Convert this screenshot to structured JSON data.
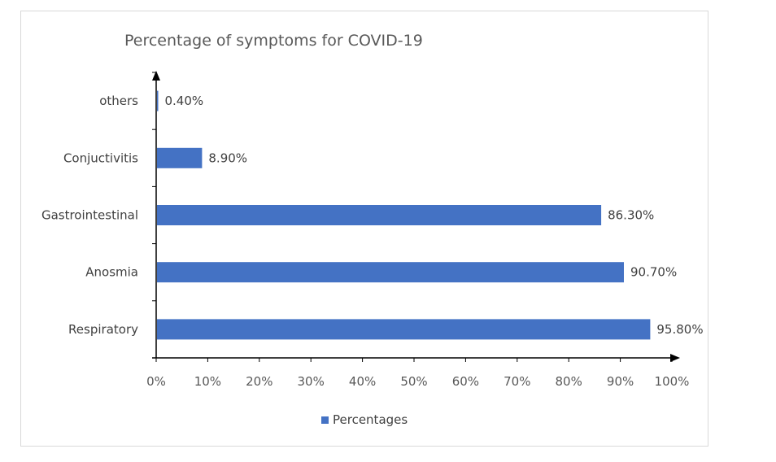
{
  "chart_data": {
    "type": "bar",
    "orientation": "horizontal",
    "title": "Percentage of symptoms for COVID-19",
    "xlabel": "",
    "ylabel": "",
    "categories": [
      "Respiratory",
      "Anosmia",
      "Gastrointestinal",
      "Conjuctivitis",
      "others"
    ],
    "values": [
      95.8,
      90.7,
      86.3,
      8.9,
      0.4
    ],
    "value_labels": [
      "95.80%",
      "90.70%",
      "86.30%",
      "8.90%",
      "0.40%"
    ],
    "series": [
      {
        "name": "Percentages",
        "values": [
          95.8,
          90.7,
          86.3,
          8.9,
          0.4
        ]
      }
    ],
    "xlim": [
      0,
      100
    ],
    "x_ticks": [
      0,
      10,
      20,
      30,
      40,
      50,
      60,
      70,
      80,
      90,
      100
    ],
    "x_tick_labels": [
      "0%",
      "10%",
      "20%",
      "30%",
      "40%",
      "50%",
      "60%",
      "70%",
      "80%",
      "90%",
      "100%"
    ],
    "grid": false,
    "legend": {
      "position": "bottom",
      "entries": [
        "Percentages"
      ]
    },
    "bar_color": "#4472C4"
  }
}
